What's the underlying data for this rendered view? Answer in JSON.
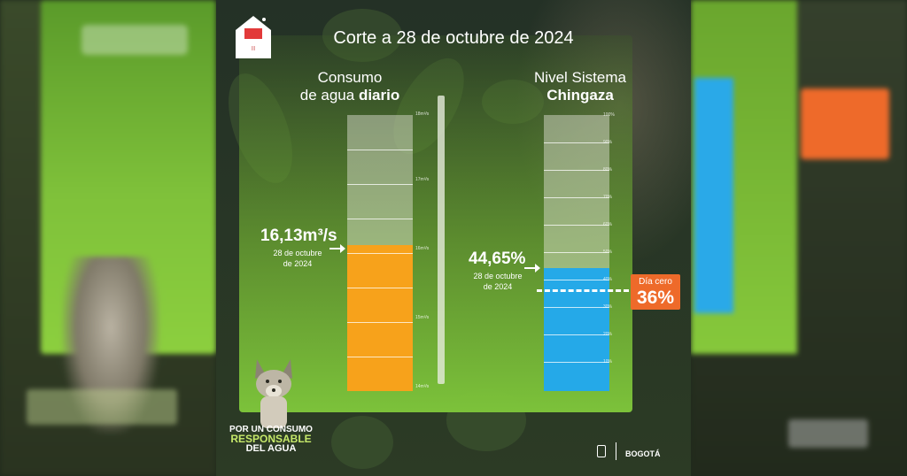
{
  "header": {
    "title": "Corte a 28 de octubre de 2024"
  },
  "consumo": {
    "title_line1": "Consumo",
    "title_line2_regular": "de agua ",
    "title_line2_bold": "diario",
    "value": "16,13m³/s",
    "date_line1": "28 de octubre",
    "date_line2": "de 2024",
    "level_fraction": 0.53,
    "fill_color": "#f7a21b",
    "ticks": [
      "18m³/s",
      "17m³/s",
      "16m³/s",
      "15m³/s",
      "14m³/s"
    ]
  },
  "chingaza": {
    "title_line1": "Nivel Sistema",
    "title_line2": "Chingaza",
    "value": "44,65%",
    "date_line1": "28 de octubre",
    "date_line2": "de 2024",
    "level_percent": 44.65,
    "fill_color": "#25a9e8",
    "ticks": [
      "100%",
      "90%",
      "80%",
      "70%",
      "60%",
      "50%",
      "40%",
      "30%",
      "20%",
      "10%"
    ]
  },
  "dia_cero": {
    "label": "Día cero",
    "percent": "36%",
    "color": "#ee6a2a"
  },
  "slogan": {
    "line1": "POR UN CONSUMO",
    "line2": "RESPONSABLE",
    "line3": "DEL AGUA"
  },
  "footer": {
    "bogota": "BOGOTÁ"
  }
}
